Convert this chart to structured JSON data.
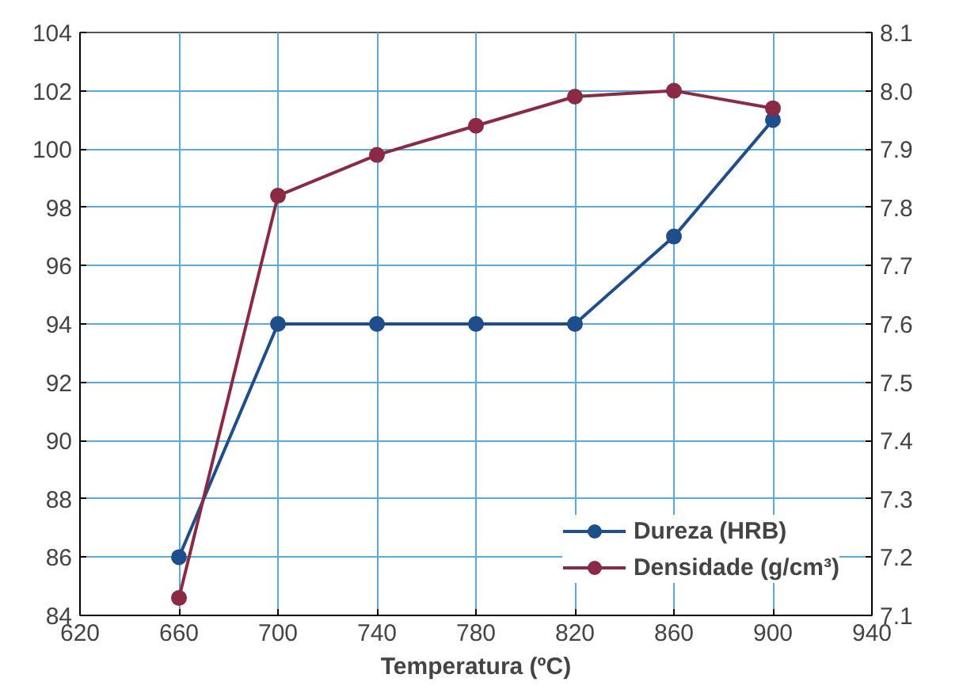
{
  "chart_data": {
    "type": "line",
    "xlabel": "Temperatura (ºC)",
    "x": [
      660,
      700,
      740,
      780,
      820,
      860,
      900
    ],
    "series": [
      {
        "name": "Dureza (HRB)",
        "color": "#1f4e8c",
        "values": [
          86,
          94,
          94,
          94,
          94,
          97,
          101
        ]
      },
      {
        "name": "Densidade (g/cm³)",
        "color": "#8b2a45",
        "axis": "y2",
        "values": [
          7.13,
          7.82,
          7.89,
          7.94,
          7.99,
          8.0,
          7.97
        ]
      }
    ],
    "xlim": [
      620,
      940
    ],
    "xticks": [
      620,
      660,
      700,
      740,
      780,
      820,
      860,
      900,
      940
    ],
    "ylim": [
      84,
      104
    ],
    "yticks": [
      84,
      86,
      88,
      90,
      92,
      94,
      96,
      98,
      100,
      102,
      104
    ],
    "y2lim": [
      7.1,
      8.1
    ],
    "y2ticks": [
      {
        "value": 7.1,
        "label": "7.1"
      },
      {
        "value": 7.2,
        "label": "7.2"
      },
      {
        "value": 7.3,
        "label": "7.3"
      },
      {
        "value": 7.4,
        "label": "7.4"
      },
      {
        "value": 7.5,
        "label": "7.5"
      },
      {
        "value": 7.6,
        "label": "7.6"
      },
      {
        "value": 7.7,
        "label": "7.7"
      },
      {
        "value": 7.8,
        "label": "7.8"
      },
      {
        "value": 7.9,
        "label": "7.9"
      },
      {
        "value": 8.0,
        "label": "8.0"
      },
      {
        "value": 8.1,
        "label": "8.1"
      }
    ],
    "grid": true,
    "legend": "bottom right",
    "marker": "circle",
    "line_style": "solid"
  }
}
